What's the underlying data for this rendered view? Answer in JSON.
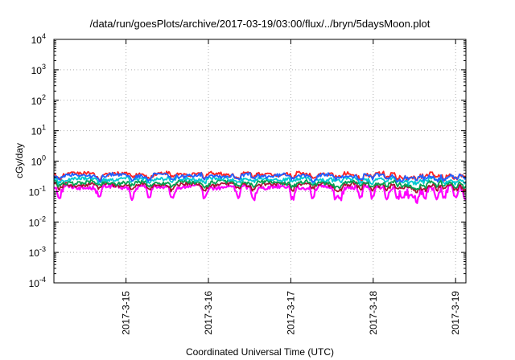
{
  "chart_data": {
    "type": "line",
    "title": "/data/run/goesPlots/archive/2017-03-19/03:00/flux/../bryn/5daysMoon.plot",
    "xlabel": "Coordinated Universal Time (UTC)",
    "ylabel": "cGy/day",
    "yscale": "log",
    "ylim": [
      0.0001,
      10000
    ],
    "xlim": [
      "2017-03-14T03:00",
      "2017-03-19T03:00"
    ],
    "x_ticks": [
      "2017-3-15",
      "2017-3-16",
      "2017-3-17",
      "2017-3-18",
      "2017-3-19"
    ],
    "y_ticks": [
      {
        "base": "10",
        "exp": "-4",
        "value": 0.0001
      },
      {
        "base": "10",
        "exp": "-3",
        "value": 0.001
      },
      {
        "base": "10",
        "exp": "-2",
        "value": 0.01
      },
      {
        "base": "10",
        "exp": "-1",
        "value": 0.1
      },
      {
        "base": "10",
        "exp": "0",
        "value": 1
      },
      {
        "base": "10",
        "exp": "1",
        "value": 10
      },
      {
        "base": "10",
        "exp": "2",
        "value": 100
      },
      {
        "base": "10",
        "exp": "3",
        "value": 1000
      },
      {
        "base": "10",
        "exp": "4",
        "value": 10000
      }
    ],
    "grid": true,
    "legend": "none",
    "series": [
      {
        "color": "#ff00ff",
        "base": 0.14,
        "dips": [
          [
            0.08,
            0.06
          ],
          [
            0.69,
            0.55
          ],
          [
            0.99,
            0.6
          ]
        ],
        "baseline_dip_depth": 0.45
      },
      {
        "color": "#aa1133",
        "base": 0.17,
        "dips": [
          [
            0.08,
            0.65
          ],
          [
            0.69,
            0.7
          ]
        ],
        "baseline_dip_depth": 0.7
      },
      {
        "color": "#00a050",
        "base": 0.2,
        "dips": [
          [
            0.08,
            0.7
          ]
        ],
        "baseline_dip_depth": 0.75
      },
      {
        "color": "#00c8d0",
        "base": 0.26,
        "dips": [
          [
            0.08,
            0.75
          ]
        ],
        "baseline_dip_depth": 0.8
      },
      {
        "color": "#ff2020",
        "base": 0.38,
        "dips": [
          [
            0.08,
            0.7
          ]
        ],
        "baseline_dip_depth": 0.75
      },
      {
        "color": "#2060ff",
        "base": 0.34,
        "dips": [
          [
            0.08,
            0.7
          ]
        ],
        "baseline_dip_depth": 0.75
      }
    ]
  }
}
